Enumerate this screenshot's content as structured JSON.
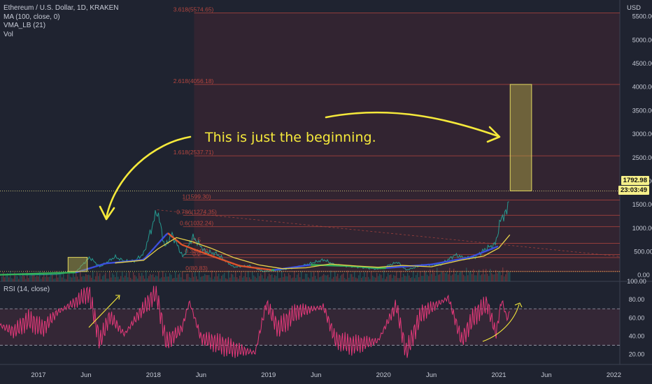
{
  "header": {
    "title": "Ethereum / U.S. Dollar, 1D, KRAKEN",
    "indicators": [
      "MA (100, close, 0)",
      "VMA_LB (21)",
      "Vol"
    ],
    "currency": "USD"
  },
  "price_tags": {
    "last_price": "1792.98",
    "countdown": "23:03:49"
  },
  "rsi_panel": {
    "label": "RSI (14, close)"
  },
  "annotation": {
    "text": "This is just the beginning."
  },
  "colors": {
    "background": "#1f2330",
    "fib_zone": "#3a2632",
    "fib_line": "#b5463f",
    "annotation": "#f5e93b",
    "rsi_line": "#e5397a",
    "ma": "#e8d24a",
    "vma_up": "#3c4fe0",
    "vma_down": "#e0562d",
    "vma_flat": "#33b25a",
    "price": "#26a69a"
  },
  "chart_data": [
    {
      "type": "line",
      "title": "Ethereum / U.S. Dollar, 1D, KRAKEN",
      "x_axis": {
        "type": "time",
        "tick_labels": [
          "2017",
          "Jun",
          "2018",
          "Jun",
          "2019",
          "Jun",
          "2020",
          "Jun",
          "2021",
          "Jun",
          "2022"
        ]
      },
      "y_axis": {
        "unit": "USD",
        "tick_values": [
          0,
          500,
          1000,
          1500,
          2000,
          2500,
          3000,
          3500,
          4000,
          4500,
          5000,
          5500
        ],
        "tick_labels": [
          "0.00",
          "500.00",
          "1000.00",
          "1500.00",
          "2000.00",
          "2500.00",
          "3000.00",
          "3500.00",
          "4000.00",
          "4500.00",
          "5000.00",
          "5500.00"
        ],
        "ylim": [
          -130,
          5850
        ]
      },
      "fib_levels": [
        {
          "label": "0(80.83)",
          "value": 80.83
        },
        {
          "label": "0.2",
          "value": 375
        },
        {
          "label": "0.38(439",
          "value": 440
        },
        {
          "label": "0.5",
          "value": 680
        },
        {
          "label": "0.6(1032.24)",
          "value": 1032.24
        },
        {
          "label": "0.786(1274.35)",
          "value": 1274.35
        },
        {
          "label": "1(1599.30)",
          "value": 1599.3
        },
        {
          "label": "1.618(2537.71)",
          "value": 2537.71
        },
        {
          "label": "2.618(4056.18)",
          "value": 4056.18
        },
        {
          "label": "3.618(5574.65)",
          "value": 5574.65
        }
      ],
      "series": [
        {
          "name": "ETH/USD",
          "points": [
            [
              "2016-09-01",
              12
            ],
            [
              "2016-12-01",
              8
            ],
            [
              "2017-01-15",
              10
            ],
            [
              "2017-03-01",
              18
            ],
            [
              "2017-04-01",
              50
            ],
            [
              "2017-05-01",
              80
            ],
            [
              "2017-06-12",
              380
            ],
            [
              "2017-07-15",
              180
            ],
            [
              "2017-09-01",
              390
            ],
            [
              "2017-10-01",
              300
            ],
            [
              "2017-11-01",
              300
            ],
            [
              "2017-12-01",
              460
            ],
            [
              "2018-01-13",
              1390
            ],
            [
              "2018-02-06",
              600
            ],
            [
              "2018-03-01",
              870
            ],
            [
              "2018-04-05",
              380
            ],
            [
              "2018-05-05",
              820
            ],
            [
              "2018-06-15",
              500
            ],
            [
              "2018-07-20",
              460
            ],
            [
              "2018-09-12",
              175
            ],
            [
              "2018-11-01",
              200
            ],
            [
              "2018-12-15",
              85
            ],
            [
              "2019-02-01",
              105
            ],
            [
              "2019-04-01",
              170
            ],
            [
              "2019-06-26",
              330
            ],
            [
              "2019-08-01",
              215
            ],
            [
              "2019-10-01",
              180
            ],
            [
              "2019-12-15",
              130
            ],
            [
              "2020-02-15",
              280
            ],
            [
              "2020-03-13",
              110
            ],
            [
              "2020-05-01",
              210
            ],
            [
              "2020-07-01",
              230
            ],
            [
              "2020-08-15",
              430
            ],
            [
              "2020-09-15",
              370
            ],
            [
              "2020-10-15",
              380
            ],
            [
              "2020-11-25",
              580
            ],
            [
              "2020-12-20",
              650
            ],
            [
              "2021-01-10",
              1250
            ],
            [
              "2021-01-25",
              1300
            ],
            [
              "2021-02-05",
              1793
            ]
          ]
        },
        {
          "name": "MA (100, close, 0)",
          "points": [
            [
              "2017-09-01",
              260
            ],
            [
              "2017-12-01",
              320
            ],
            [
              "2018-01-15",
              560
            ],
            [
              "2018-03-15",
              800
            ],
            [
              "2018-05-01",
              720
            ],
            [
              "2018-07-01",
              580
            ],
            [
              "2018-09-15",
              370
            ],
            [
              "2018-12-01",
              220
            ],
            [
              "2019-02-15",
              140
            ],
            [
              "2019-05-01",
              160
            ],
            [
              "2019-07-15",
              240
            ],
            [
              "2019-10-01",
              200
            ],
            [
              "2019-12-15",
              170
            ],
            [
              "2020-03-01",
              210
            ],
            [
              "2020-06-01",
              180
            ],
            [
              "2020-09-01",
              320
            ],
            [
              "2020-11-15",
              410
            ],
            [
              "2021-01-01",
              580
            ],
            [
              "2021-02-05",
              860
            ]
          ]
        }
      ],
      "projection_box": {
        "from": "2021-02-06",
        "to": "2021-04-15",
        "low": 1792.98,
        "high": 4056.18
      },
      "source_box": {
        "from": "2017-04-05",
        "to": "2017-06-05",
        "low": 80,
        "high": 380
      }
    },
    {
      "type": "line",
      "title": "RSI (14, close)",
      "y_axis": {
        "tick_values": [
          20,
          40,
          60,
          80,
          100
        ],
        "tick_labels": [
          "20.00",
          "40.00",
          "60.00",
          "80.00",
          "100.00"
        ],
        "ylim": [
          9,
          100
        ],
        "bands": [
          30,
          70
        ]
      },
      "series": [
        {
          "name": "RSI",
          "points": [
            [
              "2016-09-01",
              52
            ],
            [
              "2016-10-15",
              45
            ],
            [
              "2016-12-01",
              58
            ],
            [
              "2017-01-15",
              48
            ],
            [
              "2017-03-01",
              66
            ],
            [
              "2017-05-01",
              78
            ],
            [
              "2017-06-10",
              88
            ],
            [
              "2017-07-15",
              34
            ],
            [
              "2017-08-15",
              62
            ],
            [
              "2017-10-01",
              42
            ],
            [
              "2017-11-15",
              64
            ],
            [
              "2018-01-10",
              88
            ],
            [
              "2018-02-10",
              33
            ],
            [
              "2018-04-01",
              48
            ],
            [
              "2018-04-25",
              78
            ],
            [
              "2018-06-01",
              38
            ],
            [
              "2018-08-01",
              31
            ],
            [
              "2018-09-12",
              26
            ],
            [
              "2018-11-20",
              22
            ],
            [
              "2018-12-25",
              76
            ],
            [
              "2019-02-01",
              48
            ],
            [
              "2019-04-01",
              67
            ],
            [
              "2019-06-25",
              72
            ],
            [
              "2019-08-01",
              36
            ],
            [
              "2019-09-25",
              30
            ],
            [
              "2019-12-15",
              35
            ],
            [
              "2020-02-10",
              74
            ],
            [
              "2020-03-13",
              22
            ],
            [
              "2020-05-01",
              65
            ],
            [
              "2020-07-25",
              82
            ],
            [
              "2020-09-05",
              35
            ],
            [
              "2020-10-15",
              62
            ],
            [
              "2020-11-25",
              76
            ],
            [
              "2020-12-23",
              42
            ],
            [
              "2021-01-10",
              80
            ],
            [
              "2021-01-28",
              58
            ],
            [
              "2021-02-05",
              68
            ]
          ]
        }
      ]
    }
  ]
}
